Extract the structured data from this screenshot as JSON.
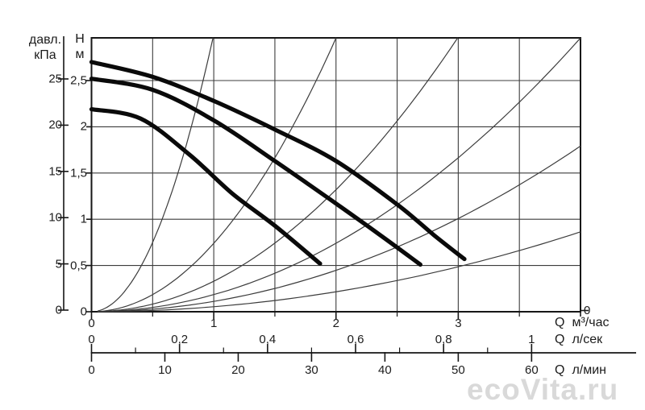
{
  "watermark": {
    "text": "ecoVita.ru"
  },
  "axes": {
    "pressure_kpa": {
      "title_line1": "давл.",
      "title_line2": "кПа",
      "labels": [
        "25",
        "20",
        "15",
        "10",
        "5",
        "0"
      ],
      "values": [
        25,
        20,
        15,
        10,
        5,
        0
      ]
    },
    "head_m": {
      "title_line1": "H",
      "title_line2": "м",
      "labels": [
        "2,5",
        "2",
        "1,5",
        "1",
        "0,5",
        "0"
      ],
      "values": [
        2.5,
        2,
        1.5,
        1,
        0.5,
        0
      ]
    },
    "flow_m3h": {
      "q_label": "Q",
      "unit": "м³/час",
      "labels": [
        "0",
        "1",
        "2",
        "3"
      ],
      "values": [
        0,
        1,
        2,
        3
      ],
      "minor_values": [
        0.5,
        1.5,
        2.5,
        3.5
      ],
      "end_label": "0"
    },
    "flow_ls": {
      "q_label": "Q",
      "unit": "л/сек",
      "labels": [
        "0",
        "0,2",
        "0,4",
        "0,6",
        "0,8",
        "1"
      ],
      "values": [
        0,
        0.2,
        0.4,
        0.6,
        0.8,
        1
      ],
      "minor_values": [
        0.1,
        0.3,
        0.5,
        0.7,
        0.9
      ]
    },
    "flow_lmin": {
      "q_label": "Q",
      "unit": "л/мин",
      "labels": [
        "0",
        "10",
        "20",
        "30",
        "40",
        "50",
        "60"
      ],
      "values": [
        0,
        10,
        20,
        30,
        40,
        50,
        60
      ]
    }
  },
  "chart_data": {
    "type": "line",
    "title": "",
    "x_axis": {
      "label": "Q",
      "units": [
        "м³/час",
        "л/сек",
        "л/мин"
      ],
      "range_m3h": [
        0,
        4
      ],
      "tick_labels_m3h": [
        "0",
        "1",
        "2",
        "3"
      ],
      "tick_labels_ls": [
        "0",
        "0,2",
        "0,4",
        "0,6",
        "0,8",
        "1"
      ],
      "tick_labels_lmin": [
        "0",
        "10",
        "20",
        "30",
        "40",
        "50",
        "60"
      ]
    },
    "y_axis": {
      "left_scales": [
        "давл. кПа",
        "H м"
      ],
      "range_m": [
        0,
        2.96
      ],
      "range_kpa": [
        0,
        26
      ],
      "tick_labels_kpa": [
        "25",
        "20",
        "15",
        "10",
        "5",
        "0"
      ],
      "tick_labels_m": [
        "2,5",
        "2",
        "1,5",
        "1",
        "0,5",
        "0"
      ]
    },
    "grid": true,
    "legend": "none",
    "pump_curves": [
      {
        "name": "pump-curve-speed-3",
        "x_m3h": [
          0,
          0.5,
          1.0,
          1.5,
          2.0,
          2.5,
          2.8,
          3.05
        ],
        "h_m": [
          2.7,
          2.54,
          2.28,
          1.97,
          1.63,
          1.16,
          0.83,
          0.57
        ]
      },
      {
        "name": "pump-curve-speed-2",
        "x_m3h": [
          0,
          0.5,
          1.0,
          1.5,
          2.0,
          2.35,
          2.69
        ],
        "h_m": [
          2.52,
          2.4,
          2.07,
          1.63,
          1.17,
          0.84,
          0.51
        ]
      },
      {
        "name": "pump-curve-speed-1",
        "x_m3h": [
          0,
          0.4,
          0.8,
          1.15,
          1.5,
          1.87
        ],
        "h_m": [
          2.19,
          2.09,
          1.7,
          1.28,
          0.93,
          0.52
        ]
      }
    ],
    "system_curves": [
      {
        "name": "system-curve-1",
        "equation": "H = 3.0·Q²",
        "k": 3.0
      },
      {
        "name": "system-curve-2",
        "equation": "H = 0.74·Q²",
        "k": 0.74
      },
      {
        "name": "system-curve-3",
        "equation": "H = 0.33·Q²",
        "k": 0.33
      },
      {
        "name": "system-curve-4",
        "equation": "H = 0.185·Q²",
        "k": 0.185
      },
      {
        "name": "system-curve-5",
        "equation": "H = 0.112·Q²",
        "k": 0.112
      },
      {
        "name": "system-curve-6",
        "equation": "H = 0.054·Q²",
        "k": 0.054
      }
    ]
  },
  "colors": {
    "curve": "#0a0a0a",
    "grid": "#3c3c3c",
    "frame": "#161616",
    "text": "#1c1c1c",
    "watermark": "#d9d9d9",
    "background": "#ffffff"
  }
}
